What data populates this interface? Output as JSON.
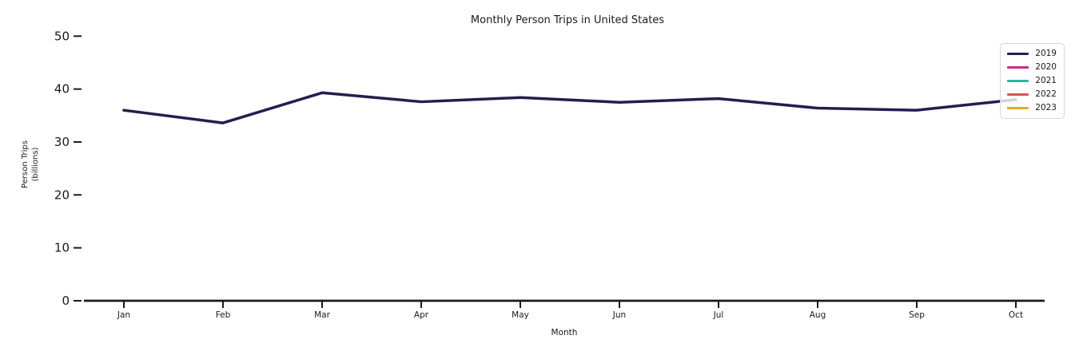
{
  "chart_data": {
    "type": "line",
    "title": "Monthly Person Trips in United States",
    "xlabel": "Month",
    "ylabel": "Person Trips (billions)",
    "ylabel_lines": [
      "Person Trips",
      "(billions)"
    ],
    "x": [
      "Jan",
      "Feb",
      "Mar",
      "Apr",
      "May",
      "Jun",
      "Jul",
      "Aug",
      "Sep",
      "Oct"
    ],
    "yticks": [
      0,
      10,
      20,
      30,
      40,
      50
    ],
    "ylim": [
      0,
      52
    ],
    "grid": false,
    "legend_position": "upper right",
    "series": [
      {
        "name": "2019",
        "color": "#221f4e",
        "values": [
          36.0,
          33.6,
          39.3,
          37.6,
          38.4,
          37.5,
          38.2,
          36.4,
          36.0,
          38.0
        ]
      },
      {
        "name": "2020",
        "color": "#c9298c",
        "values": []
      },
      {
        "name": "2021",
        "color": "#2abc95",
        "values": []
      },
      {
        "name": "2022",
        "color": "#d8544f",
        "values": []
      },
      {
        "name": "2023",
        "color": "#e0ae1d",
        "values": []
      }
    ],
    "colors": {
      "axis_text": "#1a1a1a",
      "spine": "#1a1a1a"
    }
  }
}
